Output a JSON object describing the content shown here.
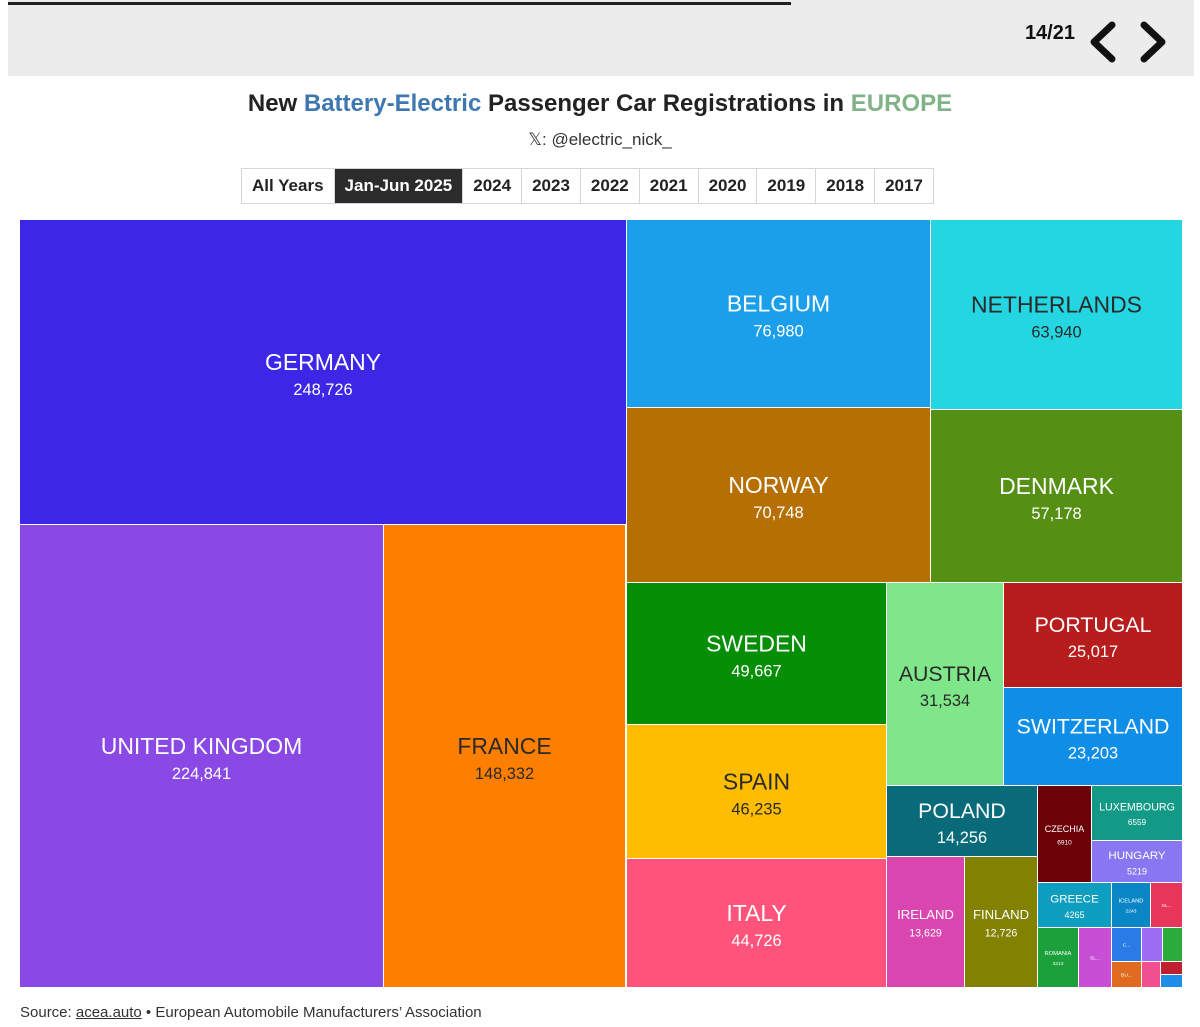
{
  "nav": {
    "page_counter": "14/21",
    "progress": 0.66
  },
  "header": {
    "title_prefix": "New ",
    "title_highlight": "Battery-Electric",
    "title_middle": " Passenger Car Registrations in ",
    "title_region": "EUROPE",
    "subtitle": "𝕏: @electric_nick_"
  },
  "tabs": {
    "items": [
      "All Years",
      "Jan-Jun 2025",
      "2024",
      "2023",
      "2022",
      "2021",
      "2020",
      "2019",
      "2018",
      "2017"
    ],
    "active": "Jan-Jun 2025"
  },
  "footer": {
    "source_label": "Source: ",
    "source_link": "acea.auto",
    "source_rest": " • European Automobile Manufacturers’ Association"
  },
  "colors": {
    "title_highlight": "#3f78b0",
    "title_region": "#82b388"
  },
  "chart_data": {
    "type": "treemap",
    "title": "New Battery-Electric Passenger Car Registrations in EUROPE",
    "period": "Jan-Jun 2025",
    "tiles": [
      {
        "name": "GERMANY",
        "value": 248726,
        "label": "248,726",
        "color": "#3b27e5"
      },
      {
        "name": "UNITED KINGDOM",
        "value": 224841,
        "label": "224,841",
        "color": "#8a48e4"
      },
      {
        "name": "FRANCE",
        "value": 148332,
        "label": "148,332",
        "color": "#fe7e00"
      },
      {
        "name": "BELGIUM",
        "value": 76980,
        "label": "76,980",
        "color": "#1b9fea"
      },
      {
        "name": "NETHERLANDS",
        "value": 63940,
        "label": "63,940",
        "color": "#23d6e1"
      },
      {
        "name": "NORWAY",
        "value": 70748,
        "label": "70,748",
        "color": "#b56f02"
      },
      {
        "name": "DENMARK",
        "value": 57178,
        "label": "57,178",
        "color": "#559015"
      },
      {
        "name": "SWEDEN",
        "value": 49667,
        "label": "49,667",
        "color": "#078e07"
      },
      {
        "name": "SPAIN",
        "value": 46235,
        "label": "46,235",
        "color": "#febd00"
      },
      {
        "name": "ITALY",
        "value": 44726,
        "label": "44,726",
        "color": "#fe547c"
      },
      {
        "name": "AUSTRIA",
        "value": 31534,
        "label": "31,534",
        "color": "#80e68a"
      },
      {
        "name": "PORTUGAL",
        "value": 25017,
        "label": "25,017",
        "color": "#b81d1d"
      },
      {
        "name": "SWITZERLAND",
        "value": 23203,
        "label": "23,203",
        "color": "#0f8ee8"
      },
      {
        "name": "POLAND",
        "value": 14256,
        "label": "14,256",
        "color": "#096a7a"
      },
      {
        "name": "IRELAND",
        "value": 13629,
        "label": "13,629",
        "color": "#d946af"
      },
      {
        "name": "FINLAND",
        "value": 12726,
        "label": "12,726",
        "color": "#828200"
      },
      {
        "name": "CZECHIA",
        "value": 6910,
        "label": "6910",
        "color": "#6b0208"
      },
      {
        "name": "LUXEMBOURG",
        "value": 6559,
        "label": "6559",
        "color": "#139a86"
      },
      {
        "name": "HUNGARY",
        "value": 5219,
        "label": "5219",
        "color": "#8877f1"
      },
      {
        "name": "GREECE",
        "value": 4265,
        "label": "4265",
        "color": "#0e9fc0"
      },
      {
        "name": "ICELAND",
        "value": 2243,
        "label": "2243",
        "color": "#0a86c6"
      },
      {
        "name": "SL...",
        "value": 1600,
        "label": "",
        "color": "#e8365a"
      },
      {
        "name": "ROMANIA",
        "value": 3213,
        "label": "3213",
        "color": "#1ba03b"
      },
      {
        "name": "SL...",
        "value": 1800,
        "label": "",
        "color": "#c64fd6"
      },
      {
        "name": "C...",
        "value": 1500,
        "label": "",
        "color": "#2a7be6"
      },
      {
        "name": "",
        "value": 600,
        "label": "",
        "color": "#9c6cf2"
      },
      {
        "name": "",
        "value": 600,
        "label": "",
        "color": "#2bac3a"
      },
      {
        "name": "BU...",
        "value": 1200,
        "label": "",
        "color": "#e06a1f"
      },
      {
        "name": "",
        "value": 300,
        "label": "",
        "color": "#f0508e"
      },
      {
        "name": "",
        "value": 300,
        "label": "",
        "color": "#bf1f2f"
      },
      {
        "name": "",
        "value": 250,
        "label": "",
        "color": "#1d8fe8"
      }
    ]
  }
}
